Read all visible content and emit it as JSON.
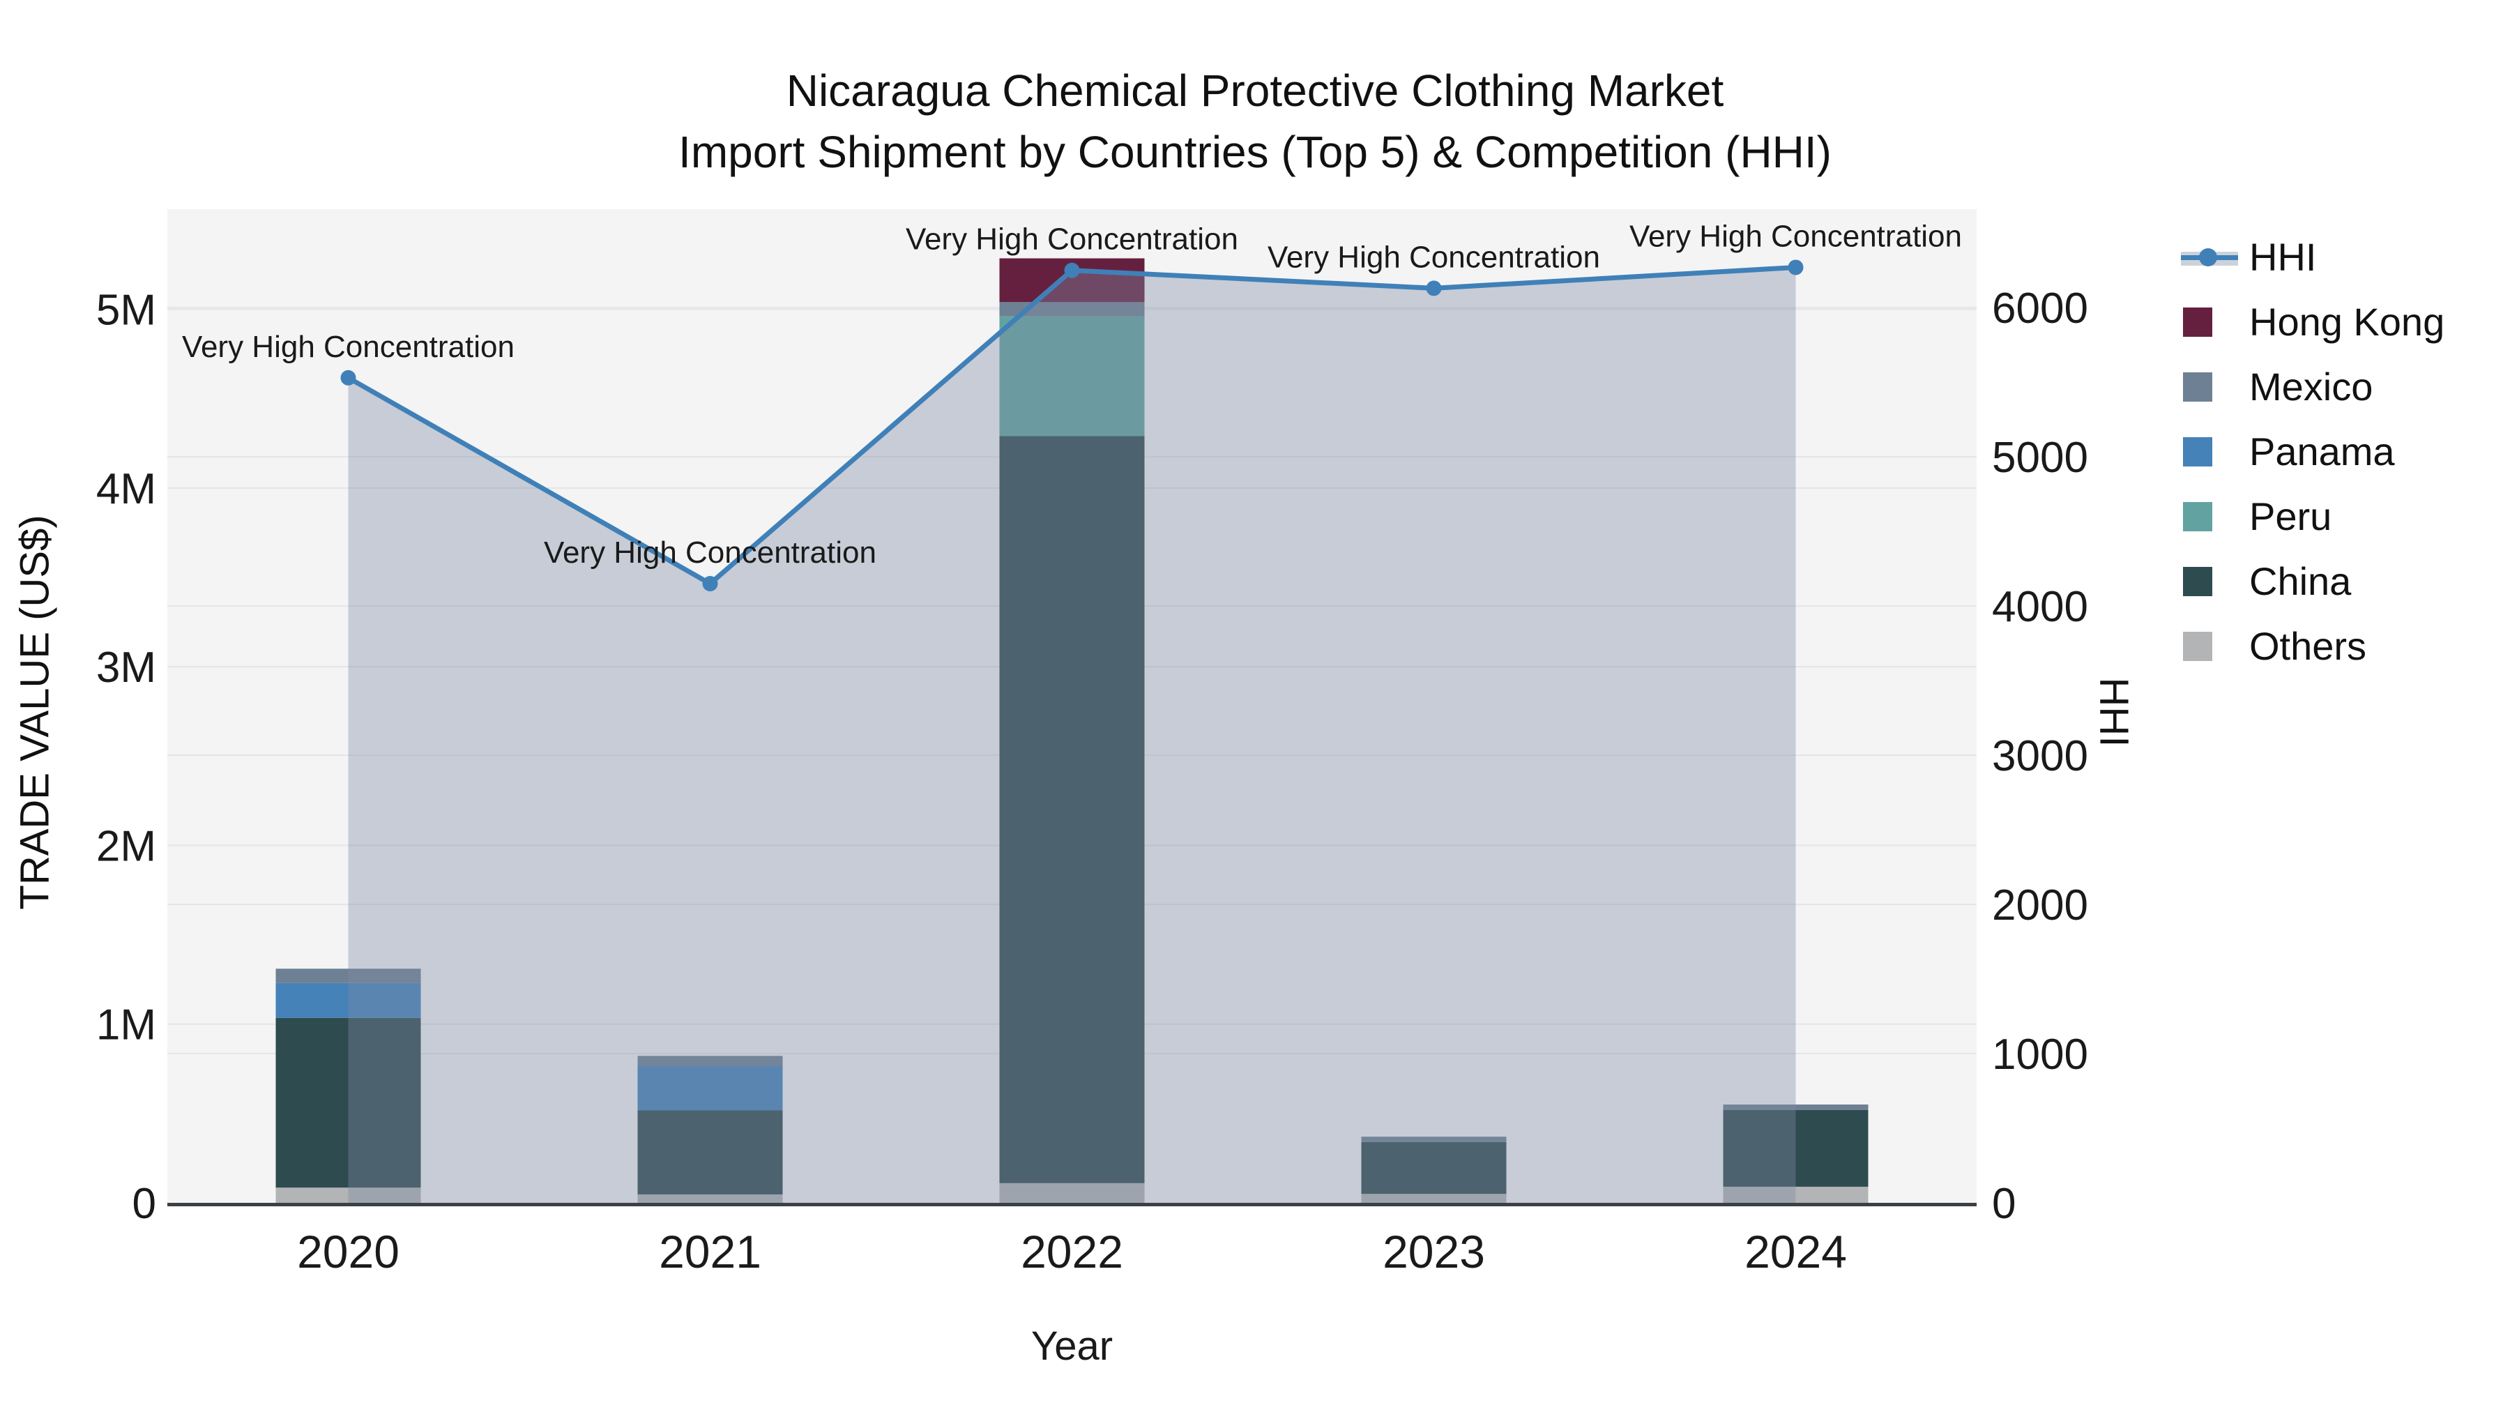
{
  "title": {
    "line1": "Nicaragua Chemical Protective Clothing Market",
    "line2": "Import Shipment by Countries (Top 5) & Competition (HHI)"
  },
  "colors": {
    "hhi_line": "#4080b8",
    "hong_kong": "#66203f",
    "mexico": "#6e8093",
    "panama": "#4482b8",
    "peru": "#62a3a1",
    "china": "#2e4b50",
    "others": "#b2b4b5",
    "area_fill": "rgba(127,139,164,0.38)",
    "plot_bg": "#f4f4f5",
    "gridline": "#e3e5e8",
    "axis_line": "#3b4044",
    "text": "#1a1a1a"
  },
  "legend": {
    "items": [
      {
        "name": "HHI",
        "swatch": "line",
        "color": "#4080b8"
      },
      {
        "name": "Hong Kong",
        "swatch": "square",
        "color": "#66203f"
      },
      {
        "name": "Mexico",
        "swatch": "square",
        "color": "#6e8093"
      },
      {
        "name": "Panama",
        "swatch": "square",
        "color": "#4482b8"
      },
      {
        "name": "Peru",
        "swatch": "square",
        "color": "#62a3a1"
      },
      {
        "name": "China",
        "swatch": "square",
        "color": "#2e4b50"
      },
      {
        "name": "Others",
        "swatch": "square",
        "color": "#b2b4b5"
      }
    ]
  },
  "chart_data": {
    "type": "bar+line",
    "title": "Nicaragua Chemical Protective Clothing Market Import Shipment by Countries (Top 5) & Competition (HHI)",
    "categories": [
      "2020",
      "2021",
      "2022",
      "2023",
      "2024"
    ],
    "bar_stack_order_bottom_to_top": [
      "Others",
      "China",
      "Peru",
      "Panama",
      "Mexico",
      "Hong Kong"
    ],
    "series": [
      {
        "name": "Others",
        "color": "#b2b4b5",
        "values_usd": [
          85000,
          47000,
          110000,
          50000,
          90000
        ]
      },
      {
        "name": "China",
        "color": "#2e4b50",
        "values_usd": [
          950000,
          470000,
          4180000,
          290000,
          430000
        ]
      },
      {
        "name": "Peru",
        "color": "#62a3a1",
        "values_usd": [
          0,
          0,
          670000,
          0,
          0
        ]
      },
      {
        "name": "Panama",
        "color": "#4482b8",
        "values_usd": [
          195000,
          250000,
          0,
          0,
          0
        ]
      },
      {
        "name": "Mexico",
        "color": "#6e8093",
        "values_usd": [
          80000,
          55000,
          80000,
          30000,
          30000
        ]
      },
      {
        "name": "Hong Kong",
        "color": "#66203f",
        "values_usd": [
          0,
          0,
          245000,
          0,
          0
        ]
      }
    ],
    "line_series": {
      "name": "HHI",
      "color": "#4080b8",
      "values": [
        5530,
        4150,
        6250,
        6130,
        6270
      ],
      "area_fill": "rgba(127,139,164,0.38)"
    },
    "annotations": [
      {
        "x": "2020",
        "text": "Very High Concentration"
      },
      {
        "x": "2021",
        "text": "Very High Concentration"
      },
      {
        "x": "2022",
        "text": "Very High Concentration"
      },
      {
        "x": "2023",
        "text": "Very High Concentration"
      },
      {
        "x": "2024",
        "text": "Very High Concentration"
      }
    ],
    "x": {
      "title": "Year"
    },
    "y_left": {
      "title": "TRADE VALUE (US$)",
      "tick_labels": [
        "0",
        "1M",
        "2M",
        "3M",
        "4M",
        "5M"
      ],
      "tick_values": [
        0,
        1000000,
        2000000,
        3000000,
        4000000,
        5000000
      ],
      "range": [
        0,
        5560000
      ]
    },
    "y_right": {
      "title": "HHI",
      "tick_labels": [
        "0",
        "1000",
        "2000",
        "3000",
        "4000",
        "5000",
        "6000"
      ],
      "tick_values": [
        0,
        1000,
        2000,
        3000,
        4000,
        5000,
        6000
      ],
      "range": [
        0,
        6660
      ]
    },
    "grid": true,
    "legend_position": "right"
  }
}
